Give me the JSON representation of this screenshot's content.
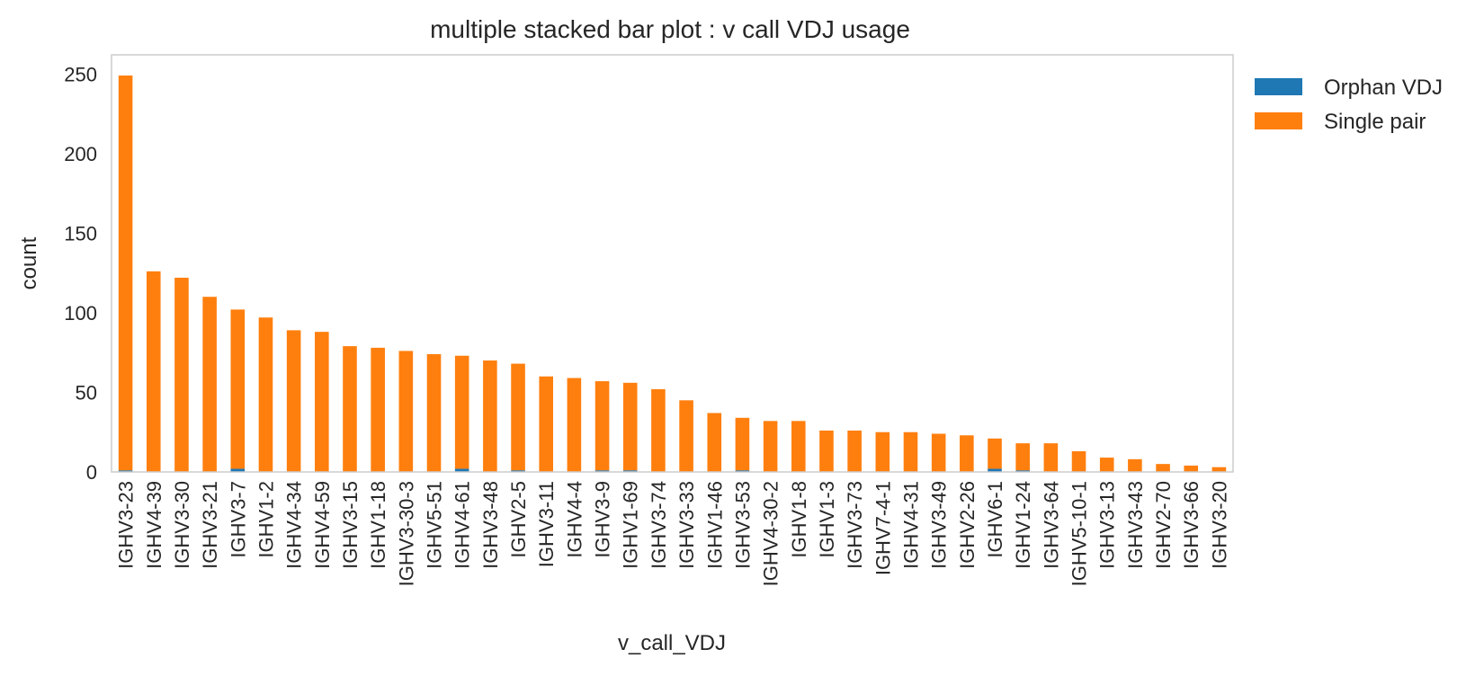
{
  "chart_data": {
    "type": "bar",
    "stacked": true,
    "title": "multiple stacked bar plot : v call VDJ usage",
    "xlabel": "v_call_VDJ",
    "ylabel": "count",
    "ylim": [
      0,
      262
    ],
    "yticks": [
      0,
      50,
      100,
      150,
      200,
      250
    ],
    "grid": false,
    "legend_position": "outside-top-right",
    "categories": [
      "IGHV3-23",
      "IGHV4-39",
      "IGHV3-30",
      "IGHV3-21",
      "IGHV3-7",
      "IGHV1-2",
      "IGHV4-34",
      "IGHV4-59",
      "IGHV3-15",
      "IGHV1-18",
      "IGHV3-30-3",
      "IGHV5-51",
      "IGHV4-61",
      "IGHV3-48",
      "IGHV2-5",
      "IGHV3-11",
      "IGHV4-4",
      "IGHV3-9",
      "IGHV1-69",
      "IGHV3-74",
      "IGHV3-33",
      "IGHV1-46",
      "IGHV3-53",
      "IGHV4-30-2",
      "IGHV1-8",
      "IGHV1-3",
      "IGHV3-73",
      "IGHV7-4-1",
      "IGHV4-31",
      "IGHV3-49",
      "IGHV2-26",
      "IGHV6-1",
      "IGHV1-24",
      "IGHV3-64",
      "IGHV5-10-1",
      "IGHV3-13",
      "IGHV3-43",
      "IGHV2-70",
      "IGHV3-66",
      "IGHV3-20"
    ],
    "series": [
      {
        "name": "Orphan VDJ",
        "color": "#1f77b4",
        "values": [
          1,
          0,
          0,
          0,
          2,
          0,
          0,
          0,
          0,
          0,
          0,
          0,
          2,
          0,
          1,
          0,
          0,
          1,
          1,
          0,
          0,
          0,
          1,
          0,
          0,
          0,
          0,
          0,
          0,
          0,
          0,
          2,
          1,
          0,
          0,
          0,
          0,
          0,
          0,
          0
        ]
      },
      {
        "name": "Single pair",
        "color": "#ff7f0e",
        "values": [
          248,
          126,
          122,
          110,
          100,
          97,
          89,
          88,
          79,
          78,
          76,
          74,
          71,
          70,
          67,
          60,
          59,
          56,
          55,
          52,
          45,
          37,
          33,
          32,
          32,
          26,
          26,
          25,
          25,
          24,
          23,
          19,
          17,
          18,
          13,
          9,
          8,
          5,
          4,
          3
        ]
      }
    ]
  }
}
